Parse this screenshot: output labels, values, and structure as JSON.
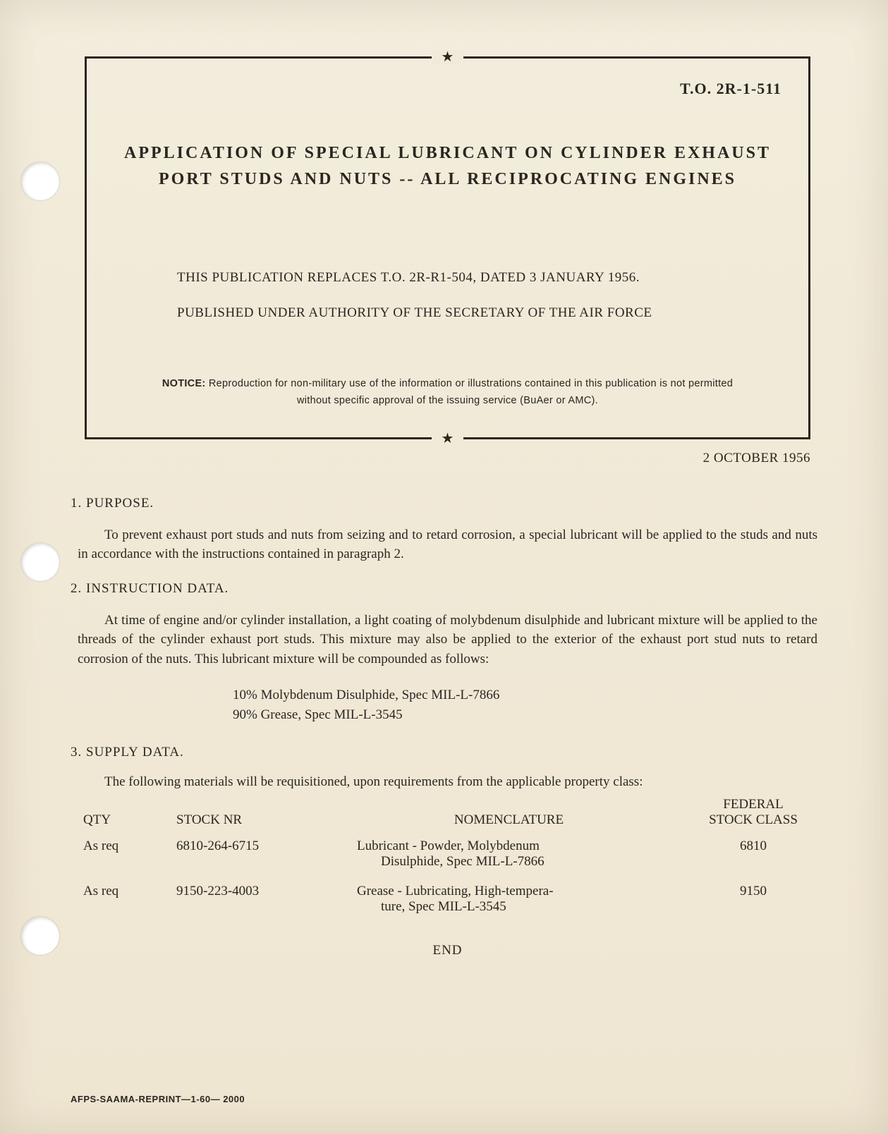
{
  "to_number": "T.O. 2R-1-511",
  "title_line1": "APPLICATION OF SPECIAL LUBRICANT ON CYLINDER EXHAUST",
  "title_line2": "PORT STUDS AND NUTS -- ALL RECIPROCATING ENGINES",
  "replaces": "THIS PUBLICATION REPLACES T.O. 2R-R1-504, DATED 3 JANUARY 1956.",
  "authority": "PUBLISHED UNDER AUTHORITY OF THE SECRETARY OF THE AIR FORCE",
  "notice_label": "NOTICE:",
  "notice_text": "Reproduction for non-military use of the information or illustrations contained in this publication is not permitted without specific approval of the issuing service (BuAer or AMC).",
  "issue_date": "2 OCTOBER 1956",
  "sections": {
    "s1": {
      "head": "1. PURPOSE.",
      "para": "To prevent exhaust port studs and nuts from seizing and to retard corrosion, a special lubricant will be applied to the studs and nuts in accordance with the instructions contained in paragraph 2."
    },
    "s2": {
      "head": "2. INSTRUCTION DATA.",
      "para": "At time of engine and/or cylinder installation, a light coating of molybdenum disulphide and lubricant mixture will be applied to the threads of the cylinder exhaust port studs. This mixture may also be applied to the exterior of the exhaust port stud nuts to retard corrosion of the nuts. This lubricant mixture will be compounded as follows:",
      "mix1": "10% Molybdenum Disulphide, Spec MIL-L-7866",
      "mix2": "90% Grease, Spec MIL-L-3545"
    },
    "s3": {
      "head": "3. SUPPLY DATA.",
      "intro": "The following materials will be requisitioned, upon requirements from the applicable property class:"
    }
  },
  "table": {
    "columns": {
      "qty": "QTY",
      "stock": "STOCK NR",
      "nomen": "NOMENCLATURE",
      "fsc_l1": "FEDERAL",
      "fsc_l2": "STOCK CLASS"
    },
    "rows": [
      {
        "qty": "As req",
        "stock": "6810-264-6715",
        "nom_l1": "Lubricant - Powder, Molybdenum",
        "nom_l2": "Disulphide, Spec MIL-L-7866",
        "fsc": "6810"
      },
      {
        "qty": "As req",
        "stock": "9150-223-4003",
        "nom_l1": "Grease - Lubricating, High-tempera-",
        "nom_l2": "ture, Spec MIL-L-3545",
        "fsc": "9150"
      }
    ]
  },
  "end": "END",
  "footer_left": "AFPS-SAAMA-REPRINT—1-60—",
  "footer_qty": "2000",
  "star": "★"
}
